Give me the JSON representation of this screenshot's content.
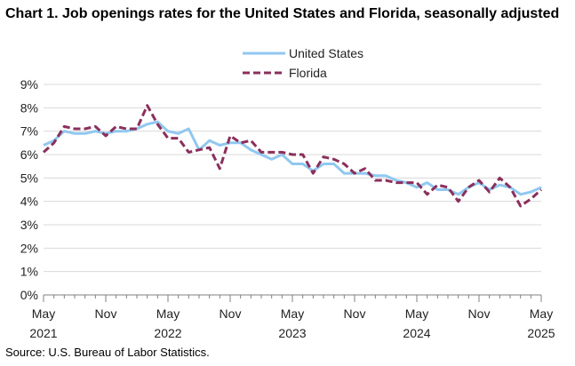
{
  "chart_data": {
    "type": "line",
    "title": "Chart 1. Job openings rates for the United States and Florida, seasonally adjusted",
    "xlabel": "",
    "ylabel": "",
    "ylim": [
      0,
      9
    ],
    "yticks": [
      0,
      1,
      2,
      3,
      4,
      5,
      6,
      7,
      8,
      9
    ],
    "ytick_labels": [
      "0%",
      "1%",
      "2%",
      "3%",
      "4%",
      "5%",
      "6%",
      "7%",
      "8%",
      "9%"
    ],
    "x_start": "May 2021",
    "x_end": "May 2025",
    "xtick_labels": [
      {
        "index": 0,
        "month": "May",
        "year": "2021"
      },
      {
        "index": 6,
        "month": "Nov",
        "year": ""
      },
      {
        "index": 12,
        "month": "May",
        "year": "2022"
      },
      {
        "index": 18,
        "month": "Nov",
        "year": ""
      },
      {
        "index": 24,
        "month": "May",
        "year": "2023"
      },
      {
        "index": 30,
        "month": "Nov",
        "year": ""
      },
      {
        "index": 36,
        "month": "May",
        "year": "2024"
      },
      {
        "index": 42,
        "month": "Nov",
        "year": ""
      },
      {
        "index": 48,
        "month": "May",
        "year": "2025"
      }
    ],
    "legend_position": "top-center",
    "grid": "horizontal",
    "series": [
      {
        "name": "United States",
        "color": "#90c8f0",
        "style": "solid",
        "values": [
          6.4,
          6.6,
          7.0,
          6.9,
          6.9,
          7.0,
          6.9,
          7.0,
          7.0,
          7.1,
          7.3,
          7.4,
          7.0,
          6.9,
          7.1,
          6.2,
          6.6,
          6.4,
          6.5,
          6.5,
          6.2,
          6.0,
          5.8,
          6.0,
          5.6,
          5.6,
          5.3,
          5.6,
          5.6,
          5.2,
          5.2,
          5.2,
          5.1,
          5.1,
          4.9,
          4.8,
          4.6,
          4.8,
          4.5,
          4.5,
          4.3,
          4.6,
          4.8,
          4.5,
          4.7,
          4.6,
          4.3,
          4.4,
          4.6
        ]
      },
      {
        "name": "Florida",
        "color": "#8b2f5c",
        "style": "dashed",
        "values": [
          6.1,
          6.5,
          7.2,
          7.1,
          7.1,
          7.2,
          6.8,
          7.2,
          7.1,
          7.1,
          8.1,
          7.3,
          6.7,
          6.7,
          6.1,
          6.2,
          6.3,
          5.4,
          6.8,
          6.5,
          6.6,
          6.1,
          6.1,
          6.1,
          6.0,
          6.0,
          5.2,
          5.9,
          5.8,
          5.6,
          5.2,
          5.4,
          4.9,
          4.9,
          4.8,
          4.8,
          4.8,
          4.3,
          4.7,
          4.6,
          4.0,
          4.6,
          4.9,
          4.4,
          5.0,
          4.6,
          3.8,
          4.1,
          4.5
        ]
      }
    ]
  },
  "source": "Source: U.S. Bureau of Labor Statistics."
}
